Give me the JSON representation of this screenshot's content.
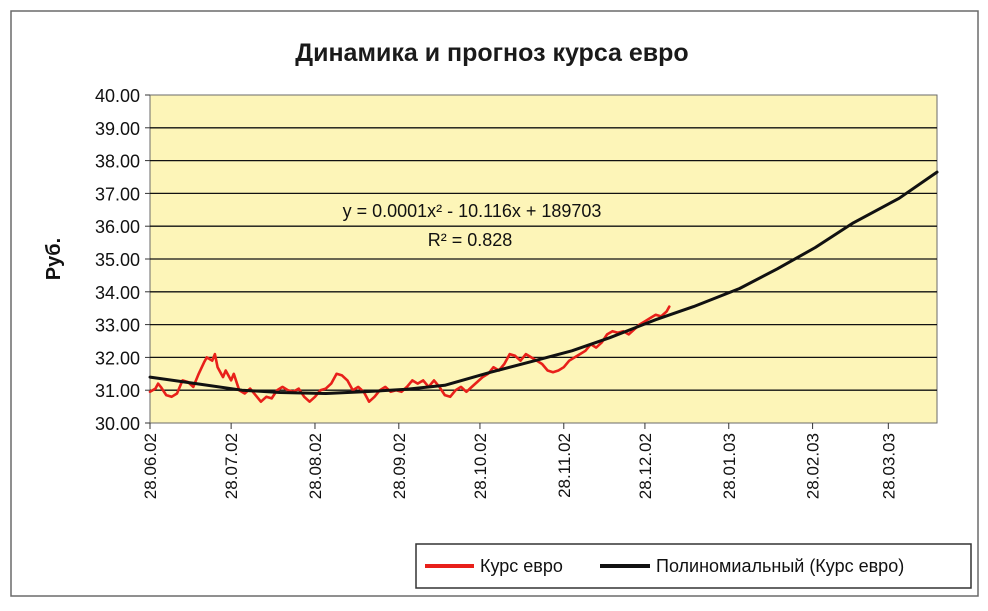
{
  "chart_data": {
    "type": "line",
    "title": "Динамика и прогноз курса евро",
    "ylabel": "Руб.",
    "xlabel": "",
    "ylim": [
      30,
      40
    ],
    "y_ticks": [
      "30.00",
      "31.00",
      "32.00",
      "33.00",
      "34.00",
      "35.00",
      "36.00",
      "37.00",
      "38.00",
      "39.00",
      "40.00"
    ],
    "x_range": [
      "2002-06-28",
      "2003-04-15"
    ],
    "x_ticks": [
      {
        "date": "2002-06-28",
        "label": "28.06.02"
      },
      {
        "date": "2002-07-28",
        "label": "28.07.02"
      },
      {
        "date": "2002-08-28",
        "label": "28.08.02"
      },
      {
        "date": "2002-09-28",
        "label": "28.09.02"
      },
      {
        "date": "2002-10-28",
        "label": "28.10.02"
      },
      {
        "date": "2002-11-28",
        "label": "28.11.02"
      },
      {
        "date": "2002-12-28",
        "label": "28.12.02"
      },
      {
        "date": "2003-01-28",
        "label": "28.01.03"
      },
      {
        "date": "2003-02-28",
        "label": "28.02.03"
      },
      {
        "date": "2003-03-28",
        "label": "28.03.03"
      }
    ],
    "grid": "horizontal",
    "legend_position": "bottom-right",
    "plot_background": "#fdf5b8",
    "annotation": {
      "equation": "y = 0.0001x² - 10.116x + 189703",
      "r_squared": "R² = 0.828"
    },
    "series": [
      {
        "name": "Курс евро",
        "color": "#e8201a",
        "points": [
          [
            "2002-06-28",
            30.95
          ],
          [
            "2002-06-30",
            31.05
          ],
          [
            "2002-07-01",
            31.2
          ],
          [
            "2002-07-02",
            31.1
          ],
          [
            "2002-07-04",
            30.85
          ],
          [
            "2002-07-06",
            30.8
          ],
          [
            "2002-07-08",
            30.9
          ],
          [
            "2002-07-10",
            31.3
          ],
          [
            "2002-07-12",
            31.25
          ],
          [
            "2002-07-14",
            31.1
          ],
          [
            "2002-07-16",
            31.5
          ],
          [
            "2002-07-18",
            31.85
          ],
          [
            "2002-07-19",
            32.0
          ],
          [
            "2002-07-21",
            31.9
          ],
          [
            "2002-07-22",
            32.1
          ],
          [
            "2002-07-23",
            31.7
          ],
          [
            "2002-07-25",
            31.4
          ],
          [
            "2002-07-26",
            31.6
          ],
          [
            "2002-07-28",
            31.3
          ],
          [
            "2002-07-29",
            31.5
          ],
          [
            "2002-07-31",
            31.0
          ],
          [
            "2002-08-02",
            30.9
          ],
          [
            "2002-08-04",
            31.05
          ],
          [
            "2002-08-06",
            30.85
          ],
          [
            "2002-08-08",
            30.65
          ],
          [
            "2002-08-10",
            30.8
          ],
          [
            "2002-08-12",
            30.75
          ],
          [
            "2002-08-14",
            31.0
          ],
          [
            "2002-08-16",
            31.1
          ],
          [
            "2002-08-18",
            31.0
          ],
          [
            "2002-08-20",
            30.95
          ],
          [
            "2002-08-22",
            31.05
          ],
          [
            "2002-08-24",
            30.8
          ],
          [
            "2002-08-26",
            30.65
          ],
          [
            "2002-08-28",
            30.8
          ],
          [
            "2002-08-30",
            31.0
          ],
          [
            "2002-09-01",
            31.05
          ],
          [
            "2002-09-03",
            31.2
          ],
          [
            "2002-09-05",
            31.5
          ],
          [
            "2002-09-07",
            31.45
          ],
          [
            "2002-09-09",
            31.3
          ],
          [
            "2002-09-11",
            31.0
          ],
          [
            "2002-09-13",
            31.1
          ],
          [
            "2002-09-15",
            30.95
          ],
          [
            "2002-09-17",
            30.65
          ],
          [
            "2002-09-19",
            30.8
          ],
          [
            "2002-09-21",
            31.0
          ],
          [
            "2002-09-23",
            31.1
          ],
          [
            "2002-09-25",
            30.95
          ],
          [
            "2002-09-27",
            31.0
          ],
          [
            "2002-09-29",
            30.95
          ],
          [
            "2002-10-01",
            31.1
          ],
          [
            "2002-10-03",
            31.3
          ],
          [
            "2002-10-05",
            31.2
          ],
          [
            "2002-10-07",
            31.3
          ],
          [
            "2002-10-09",
            31.1
          ],
          [
            "2002-10-11",
            31.3
          ],
          [
            "2002-10-13",
            31.1
          ],
          [
            "2002-10-15",
            30.85
          ],
          [
            "2002-10-17",
            30.8
          ],
          [
            "2002-10-19",
            31.0
          ],
          [
            "2002-10-21",
            31.1
          ],
          [
            "2002-10-23",
            30.95
          ],
          [
            "2002-10-25",
            31.1
          ],
          [
            "2002-10-27",
            31.25
          ],
          [
            "2002-10-29",
            31.4
          ],
          [
            "2002-10-31",
            31.5
          ],
          [
            "2002-11-02",
            31.7
          ],
          [
            "2002-11-04",
            31.6
          ],
          [
            "2002-11-06",
            31.8
          ],
          [
            "2002-11-08",
            32.1
          ],
          [
            "2002-11-10",
            32.05
          ],
          [
            "2002-11-12",
            31.9
          ],
          [
            "2002-11-14",
            32.1
          ],
          [
            "2002-11-16",
            32.0
          ],
          [
            "2002-11-18",
            31.9
          ],
          [
            "2002-11-20",
            31.8
          ],
          [
            "2002-11-22",
            31.6
          ],
          [
            "2002-11-24",
            31.55
          ],
          [
            "2002-11-26",
            31.6
          ],
          [
            "2002-11-28",
            31.7
          ],
          [
            "2002-11-30",
            31.9
          ],
          [
            "2002-12-02",
            32.0
          ],
          [
            "2002-12-04",
            32.1
          ],
          [
            "2002-12-06",
            32.2
          ],
          [
            "2002-12-08",
            32.4
          ],
          [
            "2002-12-10",
            32.3
          ],
          [
            "2002-12-12",
            32.45
          ],
          [
            "2002-12-14",
            32.7
          ],
          [
            "2002-12-16",
            32.8
          ],
          [
            "2002-12-18",
            32.75
          ],
          [
            "2002-12-20",
            32.8
          ],
          [
            "2002-12-22",
            32.7
          ],
          [
            "2002-12-24",
            32.85
          ],
          [
            "2002-12-26",
            33.0
          ],
          [
            "2002-12-28",
            33.1
          ],
          [
            "2002-12-30",
            33.2
          ],
          [
            "2003-01-01",
            33.3
          ],
          [
            "2003-01-03",
            33.25
          ],
          [
            "2003-01-05",
            33.4
          ],
          [
            "2003-01-06",
            33.55
          ]
        ]
      },
      {
        "name": "Полиномиальный (Курс евро)",
        "color": "#111111",
        "points": [
          [
            "2002-06-28",
            31.4
          ],
          [
            "2002-07-15",
            31.2
          ],
          [
            "2002-08-01",
            31.0
          ],
          [
            "2002-08-15",
            30.93
          ],
          [
            "2002-09-01",
            30.9
          ],
          [
            "2002-09-15",
            30.95
          ],
          [
            "2002-10-01",
            31.03
          ],
          [
            "2002-10-15",
            31.15
          ],
          [
            "2002-11-01",
            31.55
          ],
          [
            "2002-11-15",
            31.85
          ],
          [
            "2002-12-01",
            32.2
          ],
          [
            "2002-12-15",
            32.6
          ],
          [
            "2003-01-01",
            33.15
          ],
          [
            "2003-01-15",
            33.55
          ],
          [
            "2003-02-01",
            34.1
          ],
          [
            "2003-02-15",
            34.7
          ],
          [
            "2003-03-01",
            35.35
          ],
          [
            "2003-03-15",
            36.1
          ],
          [
            "2003-04-01",
            36.85
          ],
          [
            "2003-04-15",
            37.65
          ]
        ]
      }
    ]
  }
}
